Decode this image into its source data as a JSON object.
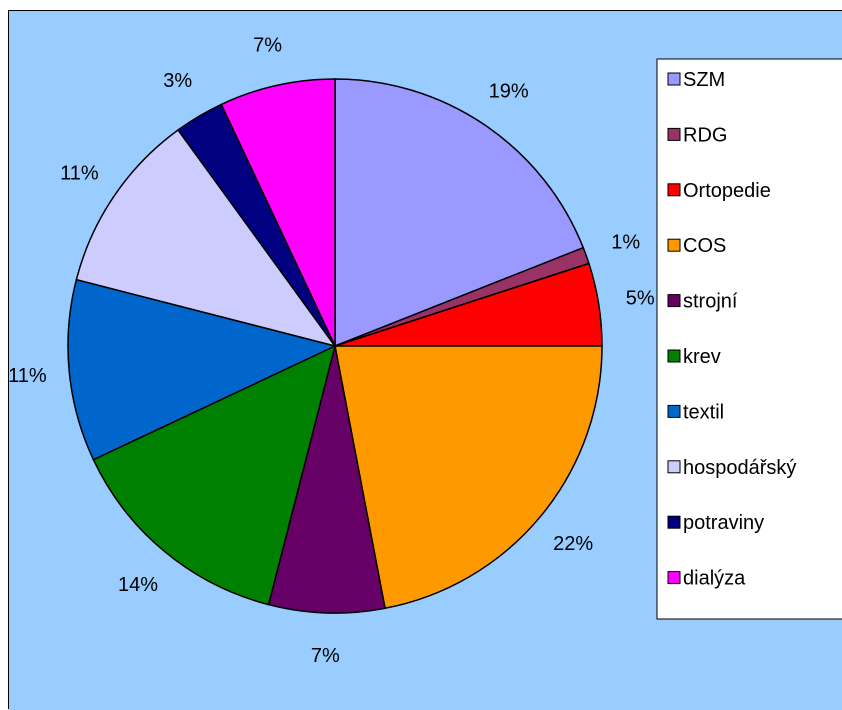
{
  "chart_data": {
    "type": "pie",
    "title": "",
    "legend_position": "right",
    "background_color": "#99CCFF",
    "categories": [
      "SZM",
      "RDG",
      "Ortopedie",
      "COS",
      "strojní",
      "krev",
      "textil",
      "hospodářský",
      "potraviny",
      "dialýza"
    ],
    "values": [
      19,
      1,
      5,
      22,
      7,
      14,
      11,
      11,
      3,
      7
    ],
    "labels": [
      "19%",
      "1%",
      "5%",
      "22%",
      "7%",
      "14%",
      "11%",
      "11%",
      "3%",
      "7%"
    ],
    "colors": [
      "#9999FF",
      "#993366",
      "#FF0000",
      "#FF9900",
      "#660066",
      "#008000",
      "#0066CC",
      "#CCCCFF",
      "#000080",
      "#FF00FF"
    ]
  }
}
